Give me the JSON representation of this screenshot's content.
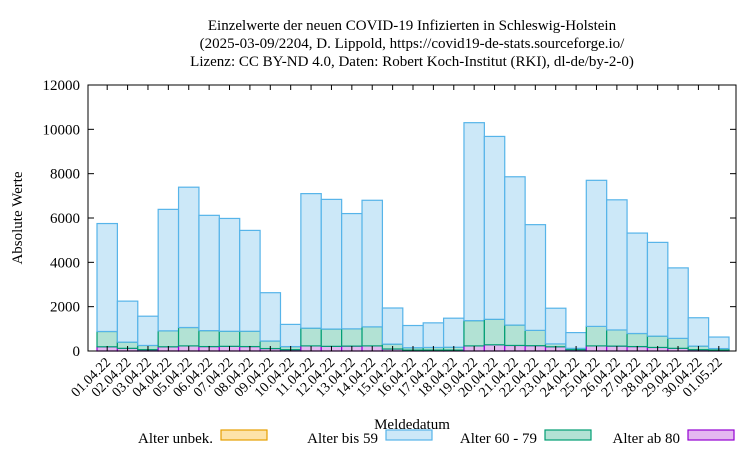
{
  "chart_data": {
    "type": "bar",
    "stacked": true,
    "title_lines": [
      "Einzelwerte der neuen COVID-19 Infizierten in Schleswig-Holstein",
      "(2025-03-09/2204, D. Lippold, https://covid19-de-stats.sourceforge.io/",
      "Lizenz: CC BY-ND 4.0, Daten: Robert Koch-Institut (RKI), dl-de/by-2-0)"
    ],
    "xlabel": "Meldedatum",
    "ylabel": "Absolute Werte",
    "ylim": [
      0,
      12000
    ],
    "yticks": [
      0,
      2000,
      4000,
      6000,
      8000,
      10000,
      12000
    ],
    "categories": [
      "01.04.22",
      "02.04.22",
      "03.04.22",
      "04.04.22",
      "05.04.22",
      "06.04.22",
      "07.04.22",
      "08.04.22",
      "09.04.22",
      "10.04.22",
      "11.04.22",
      "12.04.22",
      "13.04.22",
      "14.04.22",
      "15.04.22",
      "16.04.22",
      "17.04.22",
      "18.04.22",
      "19.04.22",
      "20.04.22",
      "21.04.22",
      "22.04.22",
      "23.04.22",
      "24.04.22",
      "25.04.22",
      "26.04.22",
      "27.04.22",
      "28.04.22",
      "29.04.22",
      "30.04.22",
      "01.05.22"
    ],
    "series": [
      {
        "name": "Alter ab 80",
        "color": "#9400d3",
        "fill": "#e4b8f0",
        "values": [
          190,
          120,
          60,
          190,
          230,
          200,
          210,
          200,
          110,
          60,
          230,
          210,
          220,
          230,
          90,
          40,
          40,
          40,
          230,
          280,
          250,
          240,
          190,
          60,
          230,
          220,
          200,
          160,
          120,
          60,
          40
        ]
      },
      {
        "name": "Alter 60 - 79",
        "color": "#009e73",
        "fill": "#b2e2d4",
        "values": [
          690,
          280,
          190,
          720,
          830,
          720,
          680,
          690,
          340,
          140,
          800,
          780,
          780,
          860,
          220,
          110,
          120,
          130,
          1140,
          1150,
          920,
          690,
          130,
          60,
          880,
          730,
          590,
          510,
          450,
          160,
          70
        ]
      },
      {
        "name": "Alter bis 59",
        "color": "#56b4e9",
        "fill": "#cce8f8",
        "values": [
          4870,
          1850,
          1320,
          5480,
          6330,
          5200,
          5090,
          4550,
          2180,
          1000,
          6070,
          5850,
          5200,
          5710,
          1630,
          1000,
          1110,
          1310,
          8930,
          8250,
          6690,
          4770,
          1610,
          710,
          6590,
          5870,
          4530,
          4230,
          3180,
          1280,
          520
        ]
      },
      {
        "name": "Alter unbek.",
        "color": "#e69f00",
        "fill": "#fde3a8",
        "values": [
          0,
          0,
          0,
          0,
          0,
          0,
          0,
          0,
          0,
          0,
          0,
          0,
          0,
          0,
          0,
          0,
          0,
          0,
          0,
          0,
          0,
          0,
          0,
          0,
          0,
          0,
          0,
          0,
          0,
          0,
          0
        ]
      }
    ],
    "legend_order": [
      "Alter unbek.",
      "Alter bis 59",
      "Alter 60 - 79",
      "Alter ab 80"
    ],
    "legend_placement": "bottom",
    "grid": false
  }
}
